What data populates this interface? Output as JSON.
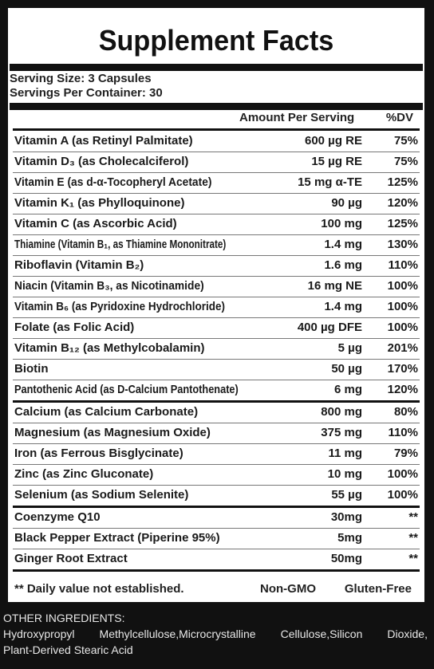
{
  "title": "Supplement Facts",
  "serving_size": "Serving Size: 3 Capsules",
  "servings_per_container": "Servings Per Container: 30",
  "headers": {
    "amount": "Amount Per Serving",
    "dv": "%DV"
  },
  "nutrients": [
    {
      "name": "Vitamin A  (as Retinyl Palmitate)",
      "amount": "600 µg RE",
      "dv": "75%"
    },
    {
      "name": "Vitamin D₃ (as Cholecalciferol)",
      "amount": "15 µg RE",
      "dv": "75%"
    },
    {
      "name": "Vitamin E (as d-α-Tocopheryl Acetate)",
      "amount": "15 mg α-TE",
      "dv": "125%"
    },
    {
      "name": "Vitamin K₁ (as Phylloquinone)",
      "amount": "90 µg",
      "dv": "120%"
    },
    {
      "name": "Vitamin C (as Ascorbic Acid)",
      "amount": "100 mg",
      "dv": "125%"
    },
    {
      "name": "Thiamine (Vitamin B₁, as Thiamine Mononitrate)",
      "amount": "1.4 mg",
      "dv": "130%"
    },
    {
      "name": "Riboflavin (Vitamin B₂)",
      "amount": "1.6 mg",
      "dv": "110%"
    },
    {
      "name": "Niacin (Vitamin B₃, as Nicotinamide)",
      "amount": "16 mg NE",
      "dv": "100%"
    },
    {
      "name": "Vitamin B₆ (as Pyridoxine Hydrochloride)",
      "amount": "1.4 mg",
      "dv": "100%"
    },
    {
      "name": "Folate (as Folic Acid)",
      "amount": "400 µg DFE",
      "dv": "100%"
    },
    {
      "name": "Vitamin B₁₂ (as Methylcobalamin)",
      "amount": "5 µg",
      "dv": "201%"
    },
    {
      "name": "Biotin",
      "amount": "50 µg",
      "dv": "170%"
    },
    {
      "name": "Pantothenic Acid (as D-Calcium Pantothenate)",
      "amount": "6 mg",
      "dv": "120%"
    },
    {
      "name": "Calcium (as Calcium Carbonate)",
      "amount": "800 mg",
      "dv": "80%"
    },
    {
      "name": "Magnesium (as Magnesium Oxide)",
      "amount": "375 mg",
      "dv": "110%"
    },
    {
      "name": "Iron (as Ferrous Bisglycinate)",
      "amount": "11 mg",
      "dv": "79%"
    },
    {
      "name": "Zinc (as Zinc Gluconate)",
      "amount": "10 mg",
      "dv": "100%"
    },
    {
      "name": "Selenium (as Sodium Selenite)",
      "amount": "55 µg",
      "dv": "100%"
    },
    {
      "name": "Coenzyme Q10",
      "amount": "30mg",
      "dv": "**"
    },
    {
      "name": "Black Pepper Extract (Piperine 95%)",
      "amount": "5mg",
      "dv": "**"
    },
    {
      "name": "Ginger Root Extract",
      "amount": "50mg",
      "dv": "**"
    }
  ],
  "footer": {
    "note": "** Daily value not established.",
    "non_gmo": "Non-GMO",
    "gluten_free": "Gluten-Free"
  },
  "other_ingredients": {
    "heading": "OTHER INGREDIENTS:",
    "line1": "Hydroxypropyl Methylcellulose,Microcrystalline Cellulose,Silicon Dioxide,",
    "line2": "Plant-Derived Stearic Acid"
  }
}
